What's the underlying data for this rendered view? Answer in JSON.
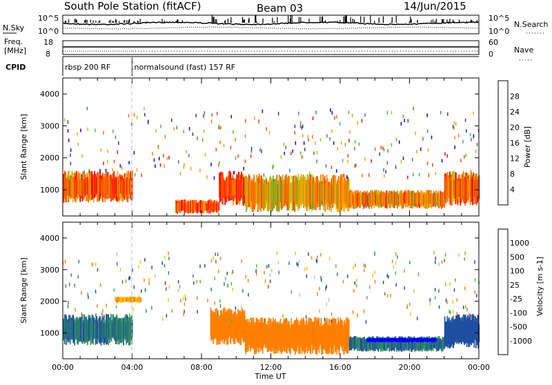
{
  "header": {
    "station": "South Pole Station (fitACF)",
    "beam": "Beam 03",
    "date": "14/Jun/2015"
  },
  "noise_panel": {
    "left_label": "N.Sky",
    "right_label": "N.Search",
    "tick_top": "10^5",
    "tick_bottom": "10^0"
  },
  "freq_panel": {
    "left_label_1": "Freq.",
    "left_label_2": "[MHz]",
    "left_top": "18",
    "left_bottom": "8",
    "right_label": "Nave",
    "right_top": "60",
    "right_bottom": "0"
  },
  "cpid_panel": {
    "label": "CPID",
    "programs": [
      {
        "name": "rbsp 200 RF",
        "start_hour": 0,
        "end_hour": 4
      },
      {
        "name": "normalsound (fast) 157 RF",
        "start_hour": 4,
        "end_hour": 24
      }
    ]
  },
  "colors": {
    "power_scale": [
      "#0000ff",
      "#1f3f9f",
      "#2f8f6f",
      "#3fbf3f",
      "#bfbf00",
      "#ff9f00",
      "#ff6f00",
      "#ff3f00",
      "#ff0000"
    ],
    "velocity_scale": [
      "#0000ff",
      "#1f4f9f",
      "#2f8f5f",
      "#4fbf3f",
      "#bfbfbf",
      "#ffbf00",
      "#ff7f00",
      "#ff3f00",
      "#ff0000"
    ]
  },
  "chart_data": [
    {
      "type": "heatmap",
      "name": "power",
      "ylabel": "Slant Range [km]",
      "ylim": [
        180,
        4500
      ],
      "y_ticks": [
        1000,
        2000,
        3000,
        4000
      ],
      "xlim_hours": [
        0,
        24
      ],
      "colorbar": {
        "label": "Power [dB]",
        "range": [
          0,
          32
        ],
        "ticks": [
          4,
          8,
          12,
          16,
          20,
          24,
          28
        ]
      },
      "features": [
        {
          "start_hour": 0.0,
          "end_hour": 4.0,
          "range_km": [
            600,
            1600
          ],
          "value": 25
        },
        {
          "start_hour": 6.5,
          "end_hour": 9.0,
          "range_km": [
            250,
            700
          ],
          "value": 26
        },
        {
          "start_hour": 9.0,
          "end_hour": 10.5,
          "range_km": [
            500,
            1600
          ],
          "value": 27
        },
        {
          "start_hour": 10.5,
          "end_hour": 16.5,
          "range_km": [
            300,
            1500
          ],
          "value": 20
        },
        {
          "start_hour": 16.5,
          "end_hour": 22.0,
          "range_km": [
            400,
            1000
          ],
          "value": 22
        },
        {
          "start_hour": 22.0,
          "end_hour": 24.0,
          "range_km": [
            500,
            1600
          ],
          "value": 24
        }
      ]
    },
    {
      "type": "heatmap",
      "name": "velocity",
      "ylabel": "Slant Range [km]",
      "ylim": [
        180,
        4500
      ],
      "y_ticks": [
        1000,
        2000,
        3000,
        4000
      ],
      "xlim_hours": [
        0,
        24
      ],
      "xlabel": "Time UT",
      "x_ticks": [
        "00:00",
        "04:00",
        "08:00",
        "12:00",
        "16:00",
        "20:00",
        "00:00"
      ],
      "colorbar": {
        "label": "Velocity [m s-1]",
        "ticks": [
          "1000",
          "500",
          "100",
          "25",
          "-25",
          "-100",
          "-500",
          "-1000"
        ]
      },
      "features": [
        {
          "start_hour": 0.0,
          "end_hour": 4.0,
          "range_km": [
            600,
            1600
          ],
          "value": 100
        },
        {
          "start_hour": 3.0,
          "end_hour": 4.5,
          "range_km": [
            1950,
            2150
          ],
          "value": -100
        },
        {
          "start_hour": 8.5,
          "end_hour": 10.5,
          "range_km": [
            600,
            1800
          ],
          "value": -300
        },
        {
          "start_hour": 10.5,
          "end_hour": 16.5,
          "range_km": [
            300,
            1500
          ],
          "value": -150
        },
        {
          "start_hour": 16.5,
          "end_hour": 22.0,
          "range_km": [
            400,
            900
          ],
          "value": 100
        },
        {
          "start_hour": 17.5,
          "end_hour": 21.5,
          "range_km": [
            700,
            850
          ],
          "value": 800
        },
        {
          "start_hour": 22.0,
          "end_hour": 24.0,
          "range_km": [
            500,
            1600
          ],
          "value": 300
        }
      ]
    }
  ]
}
